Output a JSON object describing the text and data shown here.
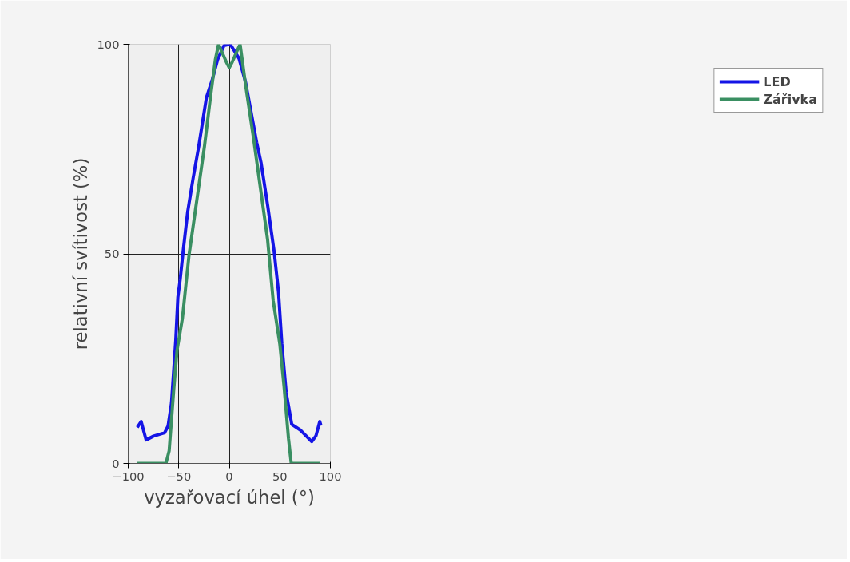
{
  "chart_data": {
    "type": "line",
    "xlabel": "vyzařovací úhel (°)",
    "ylabel": "relativní svítivost (%)",
    "xlim": [
      -100,
      100
    ],
    "xticks": [
      -100,
      -50,
      0,
      50,
      100
    ],
    "ylim": [
      0,
      100
    ],
    "yticks": [
      0,
      50,
      100
    ],
    "grid": true,
    "legend": "right",
    "line_style": "solid",
    "series": [
      {
        "name": "LED",
        "color": "#1414e6",
        "x": [
          -91,
          -87.2,
          -82.3,
          -75,
          -64,
          -60.6,
          -57.2,
          -53,
          -50.9,
          -48.7,
          -45.4,
          -41.2,
          -35.7,
          -30.2,
          -22.6,
          -17,
          -11.6,
          -5.2,
          0,
          1,
          9.7,
          16.1,
          27.1,
          31.4,
          38,
          44.4,
          48.7,
          52,
          56.3,
          61.8,
          70.6,
          81.5,
          85.8,
          89.5,
          90.7
        ],
        "values": [
          8.6,
          10,
          5.6,
          6.5,
          7.3,
          8.9,
          14.4,
          29.3,
          39.6,
          43.7,
          51.2,
          60,
          68.2,
          75.7,
          87.3,
          91.4,
          96.3,
          99.7,
          100,
          100,
          96.6,
          91,
          76.6,
          71.8,
          61.5,
          50.5,
          40.9,
          28.5,
          16.9,
          9.3,
          7.9,
          5.2,
          6.6,
          10,
          9
        ]
      },
      {
        "name": "Zářivka",
        "color": "#3a8f62",
        "x": [
          -91,
          -62.7,
          -59.5,
          -55,
          -51.7,
          -46.4,
          -39.9,
          -33.5,
          -24.6,
          -18.3,
          -13.8,
          -10.6,
          -8.8,
          -3,
          0,
          3,
          8.8,
          10.7,
          16.1,
          23.7,
          29.2,
          37.9,
          43.4,
          50,
          54.2,
          58.6,
          61.3,
          90
        ],
        "values": [
          0,
          0,
          3,
          17.5,
          27,
          34.6,
          49.6,
          60.5,
          75.6,
          88,
          96.3,
          100,
          99,
          95.8,
          94.4,
          95.8,
          99,
          100,
          90.4,
          78.1,
          68.5,
          53.4,
          38.9,
          28.5,
          18.3,
          5.9,
          0,
          0
        ]
      }
    ]
  }
}
